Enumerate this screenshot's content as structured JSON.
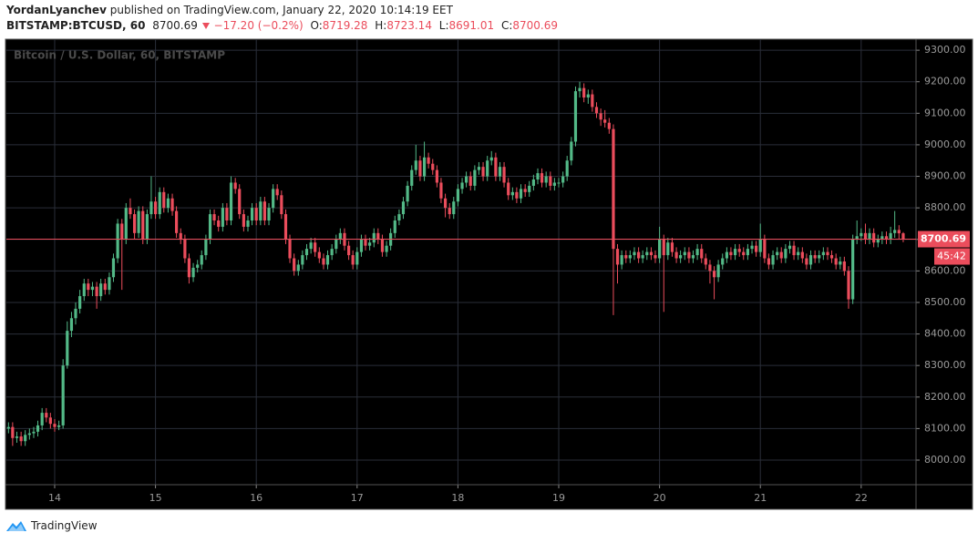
{
  "header": {
    "author": "YordanLyanchev",
    "published": "published on TradingView.com, January 22, 2020 10:14:19 EET",
    "symbol": "BITSTAMP:BTCUSD, 60",
    "change": "−17.20 (−0.2%)",
    "ohlc_labels": [
      "O:",
      "H:",
      "L:",
      "C:"
    ]
  },
  "countdown": "45:42",
  "footer": {
    "brand": "TradingView"
  },
  "chart_data": {
    "type": "candlestick",
    "title": "Bitcoin / U.S. Dollar, 60, BITSTAMP",
    "up_color": "#53b987",
    "down_color": "#eb4d5c",
    "grid": true,
    "xlim": [
      13.521,
      22.544
    ],
    "xticks": [
      14,
      15,
      16,
      17,
      18,
      19,
      20,
      21,
      22
    ],
    "ylim": [
      7922,
      9335
    ],
    "yticks": [
      {
        "value": 8000,
        "label": "8000.00"
      },
      {
        "value": 8100,
        "label": "8100.00"
      },
      {
        "value": 8200,
        "label": "8200.00"
      },
      {
        "value": 8300,
        "label": "8300.00"
      },
      {
        "value": 8400,
        "label": "8400.00"
      },
      {
        "value": 8500,
        "label": "8500.00"
      },
      {
        "value": 8600,
        "label": "8600.00"
      },
      {
        "value": 8700,
        "label": "8700.00"
      },
      {
        "value": 8800,
        "label": "8800.00"
      },
      {
        "value": 8900,
        "label": "8900.00"
      },
      {
        "value": 9000,
        "label": "9000.00"
      },
      {
        "value": 9100,
        "label": "9100.00"
      },
      {
        "value": 9200,
        "label": "9200.00"
      },
      {
        "value": 9300,
        "label": "9300.00"
      }
    ],
    "x": [
      13.542,
      13.583,
      13.625,
      13.667,
      13.708,
      13.75,
      13.792,
      13.833,
      13.875,
      13.917,
      13.958,
      14,
      14.042,
      14.083,
      14.125,
      14.167,
      14.208,
      14.25,
      14.292,
      14.333,
      14.375,
      14.417,
      14.458,
      14.5,
      14.542,
      14.583,
      14.625,
      14.667,
      14.708,
      14.75,
      14.792,
      14.833,
      14.875,
      14.917,
      14.958,
      15,
      15.042,
      15.083,
      15.125,
      15.167,
      15.208,
      15.25,
      15.292,
      15.333,
      15.375,
      15.417,
      15.458,
      15.5,
      15.542,
      15.583,
      15.625,
      15.667,
      15.708,
      15.75,
      15.792,
      15.833,
      15.875,
      15.917,
      15.958,
      16,
      16.042,
      16.083,
      16.125,
      16.167,
      16.208,
      16.25,
      16.292,
      16.333,
      16.375,
      16.417,
      16.458,
      16.5,
      16.542,
      16.583,
      16.625,
      16.667,
      16.708,
      16.75,
      16.792,
      16.833,
      16.875,
      16.917,
      16.958,
      17,
      17.042,
      17.083,
      17.125,
      17.167,
      17.208,
      17.25,
      17.292,
      17.333,
      17.375,
      17.417,
      17.458,
      17.5,
      17.542,
      17.583,
      17.625,
      17.667,
      17.708,
      17.75,
      17.792,
      17.833,
      17.875,
      17.917,
      17.958,
      18,
      18.042,
      18.083,
      18.125,
      18.167,
      18.208,
      18.25,
      18.292,
      18.333,
      18.375,
      18.417,
      18.458,
      18.5,
      18.542,
      18.583,
      18.625,
      18.667,
      18.708,
      18.75,
      18.792,
      18.833,
      18.875,
      18.917,
      18.958,
      19,
      19.042,
      19.083,
      19.125,
      19.167,
      19.208,
      19.25,
      19.292,
      19.333,
      19.375,
      19.417,
      19.458,
      19.5,
      19.542,
      19.583,
      19.625,
      19.667,
      19.708,
      19.75,
      19.792,
      19.833,
      19.875,
      19.917,
      19.958,
      20,
      20.042,
      20.083,
      20.125,
      20.167,
      20.208,
      20.25,
      20.292,
      20.333,
      20.375,
      20.417,
      20.458,
      20.5,
      20.542,
      20.583,
      20.625,
      20.667,
      20.708,
      20.75,
      20.792,
      20.833,
      20.875,
      20.917,
      20.958,
      21,
      21.042,
      21.083,
      21.125,
      21.167,
      21.208,
      21.25,
      21.292,
      21.333,
      21.375,
      21.417,
      21.458,
      21.5,
      21.542,
      21.583,
      21.625,
      21.667,
      21.708,
      21.75,
      21.792,
      21.833,
      21.875,
      21.917,
      21.958,
      22,
      22.042,
      22.083,
      22.125,
      22.167,
      22.208,
      22.25,
      22.292,
      22.333,
      22.375,
      22.417
    ],
    "open": [
      8100,
      8105,
      8070,
      8075,
      8060,
      8080,
      8085,
      8090,
      8110,
      8150,
      8135,
      8115,
      8105,
      8110,
      8300,
      8410,
      8450,
      8480,
      8520,
      8560,
      8540,
      8550,
      8520,
      8560,
      8540,
      8580,
      8640,
      8750,
      8700,
      8800,
      8780,
      8720,
      8790,
      8700,
      8780,
      8820,
      8780,
      8850,
      8800,
      8830,
      8790,
      8720,
      8700,
      8640,
      8580,
      8610,
      8620,
      8650,
      8700,
      8780,
      8760,
      8740,
      8800,
      8760,
      8880,
      8860,
      8780,
      8740,
      8760,
      8800,
      8760,
      8820,
      8760,
      8800,
      8860,
      8840,
      8780,
      8700,
      8640,
      8600,
      8620,
      8650,
      8670,
      8690,
      8660,
      8640,
      8620,
      8650,
      8670,
      8700,
      8720,
      8680,
      8650,
      8620,
      8660,
      8700,
      8680,
      8690,
      8720,
      8700,
      8660,
      8680,
      8720,
      8760,
      8780,
      8820,
      8870,
      8920,
      8950,
      8900,
      8960,
      8940,
      8920,
      8880,
      8830,
      8800,
      8780,
      8820,
      8860,
      8880,
      8900,
      8870,
      8920,
      8930,
      8900,
      8950,
      8960,
      8900,
      8930,
      8880,
      8840,
      8850,
      8830,
      8860,
      8850,
      8870,
      8890,
      8910,
      8880,
      8900,
      8870,
      8880,
      8880,
      8900,
      8950,
      9010,
      9170,
      9180,
      9150,
      9160,
      9120,
      9100,
      9080,
      9070,
      9050,
      8670,
      8620,
      8650,
      8640,
      8650,
      8660,
      8640,
      8650,
      8660,
      8650,
      8640,
      8700,
      8650,
      8690,
      8660,
      8640,
      8650,
      8660,
      8640,
      8650,
      8670,
      8640,
      8620,
      8600,
      8580,
      8620,
      8640,
      8660,
      8650,
      8670,
      8660,
      8650,
      8670,
      8680,
      8660,
      8700,
      8640,
      8620,
      8650,
      8660,
      8640,
      8670,
      8680,
      8650,
      8660,
      8640,
      8620,
      8650,
      8640,
      8650,
      8660,
      8650,
      8640,
      8620,
      8630,
      8600,
      8510,
      8700,
      8710,
      8720,
      8700,
      8720,
      8690,
      8700,
      8710,
      8700,
      8720,
      8730,
      8719.28
    ],
    "high": [
      8120,
      8120,
      8090,
      8090,
      8095,
      8100,
      8105,
      8125,
      8165,
      8165,
      8150,
      8130,
      8125,
      8320,
      8440,
      8470,
      8500,
      8540,
      8575,
      8575,
      8565,
      8565,
      8575,
      8575,
      8595,
      8655,
      8765,
      8765,
      8815,
      8830,
      8795,
      8805,
      8805,
      8795,
      8900,
      8835,
      8865,
      8865,
      8845,
      8845,
      8805,
      8735,
      8715,
      8655,
      8625,
      8635,
      8665,
      8715,
      8795,
      8795,
      8775,
      8815,
      8815,
      8900,
      8895,
      8875,
      8795,
      8775,
      8815,
      8815,
      8835,
      8835,
      8815,
      8875,
      8875,
      8855,
      8795,
      8715,
      8655,
      8635,
      8665,
      8685,
      8705,
      8705,
      8675,
      8655,
      8665,
      8685,
      8715,
      8735,
      8735,
      8695,
      8665,
      8675,
      8715,
      8715,
      8705,
      8735,
      8735,
      8715,
      8695,
      8735,
      8775,
      8795,
      8835,
      8885,
      8935,
      9000,
      8965,
      9010,
      8975,
      8955,
      8935,
      8895,
      8845,
      8815,
      8835,
      8875,
      8895,
      8915,
      8915,
      8935,
      8945,
      8945,
      8965,
      8980,
      8975,
      8945,
      8945,
      8895,
      8865,
      8865,
      8875,
      8875,
      8885,
      8905,
      8925,
      8925,
      8915,
      8915,
      8895,
      8895,
      8915,
      8965,
      9025,
      9185,
      9200,
      9195,
      9175,
      9175,
      9135,
      9115,
      9110,
      9085,
      9065,
      8685,
      8665,
      8665,
      8665,
      8675,
      8675,
      8665,
      8675,
      8675,
      8665,
      8740,
      8715,
      8705,
      8705,
      8675,
      8665,
      8675,
      8675,
      8665,
      8685,
      8685,
      8655,
      8635,
      8615,
      8635,
      8655,
      8675,
      8675,
      8685,
      8685,
      8675,
      8685,
      8695,
      8695,
      8750,
      8715,
      8655,
      8665,
      8675,
      8675,
      8685,
      8695,
      8695,
      8675,
      8675,
      8655,
      8665,
      8665,
      8665,
      8675,
      8675,
      8665,
      8655,
      8645,
      8645,
      8615,
      8715,
      8760,
      8735,
      8750,
      8735,
      8735,
      8715,
      8725,
      8725,
      8740,
      8790,
      8745,
      8723.14
    ],
    "low": [
      8085,
      8045,
      8055,
      8045,
      8045,
      8065,
      8070,
      8075,
      8095,
      8120,
      8100,
      8090,
      8095,
      8100,
      8290,
      8390,
      8430,
      8465,
      8505,
      8520,
      8520,
      8480,
      8505,
      8525,
      8525,
      8565,
      8625,
      8540,
      8685,
      8765,
      8700,
      8705,
      8685,
      8685,
      8765,
      8765,
      8765,
      8785,
      8785,
      8775,
      8705,
      8685,
      8625,
      8560,
      8565,
      8595,
      8605,
      8635,
      8685,
      8745,
      8725,
      8725,
      8745,
      8745,
      8845,
      8765,
      8725,
      8725,
      8745,
      8745,
      8745,
      8745,
      8745,
      8785,
      8825,
      8765,
      8685,
      8625,
      8585,
      8585,
      8605,
      8635,
      8655,
      8645,
      8625,
      8605,
      8605,
      8635,
      8655,
      8685,
      8665,
      8635,
      8605,
      8605,
      8645,
      8665,
      8665,
      8675,
      8685,
      8645,
      8645,
      8665,
      8705,
      8745,
      8765,
      8805,
      8855,
      8905,
      8885,
      8885,
      8925,
      8905,
      8865,
      8815,
      8770,
      8765,
      8765,
      8805,
      8845,
      8865,
      8855,
      8855,
      8905,
      8885,
      8885,
      8935,
      8885,
      8885,
      8865,
      8825,
      8825,
      8815,
      8815,
      8835,
      8835,
      8855,
      8875,
      8865,
      8865,
      8855,
      8855,
      8865,
      8865,
      8885,
      8935,
      8995,
      9150,
      9135,
      9130,
      9105,
      9085,
      9060,
      9055,
      9035,
      8460,
      8560,
      8605,
      8625,
      8625,
      8635,
      8625,
      8625,
      8635,
      8635,
      8625,
      8625,
      8470,
      8635,
      8645,
      8625,
      8625,
      8635,
      8625,
      8625,
      8635,
      8625,
      8605,
      8560,
      8510,
      8565,
      8605,
      8625,
      8635,
      8635,
      8645,
      8635,
      8635,
      8655,
      8645,
      8645,
      8625,
      8605,
      8605,
      8635,
      8625,
      8625,
      8655,
      8635,
      8635,
      8625,
      8605,
      8605,
      8625,
      8625,
      8635,
      8635,
      8625,
      8605,
      8605,
      8585,
      8480,
      8495,
      8685,
      8695,
      8685,
      8685,
      8675,
      8675,
      8685,
      8685,
      8685,
      8705,
      8700,
      8691.01
    ],
    "close": [
      8105,
      8070,
      8075,
      8060,
      8080,
      8085,
      8090,
      8110,
      8150,
      8135,
      8115,
      8105,
      8110,
      8300,
      8410,
      8450,
      8480,
      8520,
      8560,
      8540,
      8550,
      8520,
      8560,
      8540,
      8580,
      8640,
      8750,
      8700,
      8800,
      8780,
      8720,
      8790,
      8700,
      8780,
      8820,
      8780,
      8850,
      8800,
      8830,
      8790,
      8720,
      8700,
      8640,
      8580,
      8610,
      8620,
      8650,
      8700,
      8780,
      8760,
      8740,
      8800,
      8760,
      8880,
      8860,
      8780,
      8740,
      8760,
      8800,
      8760,
      8820,
      8760,
      8800,
      8860,
      8840,
      8780,
      8700,
      8640,
      8600,
      8620,
      8650,
      8670,
      8690,
      8660,
      8640,
      8620,
      8650,
      8670,
      8700,
      8720,
      8680,
      8650,
      8620,
      8660,
      8700,
      8680,
      8690,
      8720,
      8700,
      8660,
      8680,
      8720,
      8760,
      8780,
      8820,
      8870,
      8920,
      8950,
      8900,
      8960,
      8940,
      8920,
      8880,
      8830,
      8800,
      8780,
      8820,
      8860,
      8880,
      8900,
      8870,
      8920,
      8930,
      8900,
      8950,
      8960,
      8900,
      8930,
      8880,
      8840,
      8850,
      8830,
      8860,
      8850,
      8870,
      8890,
      8910,
      8880,
      8900,
      8870,
      8880,
      8880,
      8900,
      8950,
      9010,
      9170,
      9180,
      9150,
      9160,
      9120,
      9100,
      9080,
      9070,
      9050,
      8670,
      8620,
      8650,
      8640,
      8650,
      8660,
      8640,
      8650,
      8660,
      8650,
      8640,
      8700,
      8650,
      8690,
      8660,
      8640,
      8650,
      8660,
      8640,
      8650,
      8670,
      8640,
      8620,
      8600,
      8580,
      8620,
      8640,
      8660,
      8650,
      8670,
      8660,
      8650,
      8670,
      8680,
      8660,
      8700,
      8640,
      8620,
      8650,
      8660,
      8640,
      8670,
      8680,
      8650,
      8660,
      8640,
      8620,
      8650,
      8640,
      8650,
      8660,
      8650,
      8640,
      8620,
      8630,
      8600,
      8510,
      8700,
      8710,
      8720,
      8700,
      8720,
      8690,
      8700,
      8710,
      8700,
      8720,
      8730,
      8719.28,
      8700.69
    ]
  }
}
